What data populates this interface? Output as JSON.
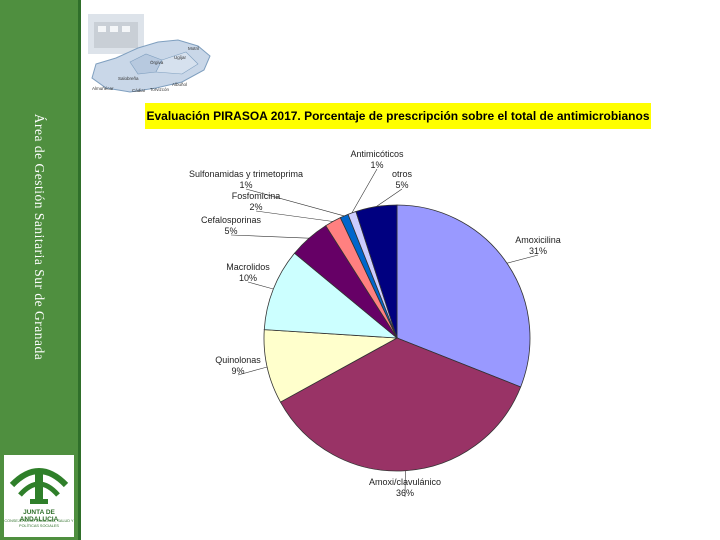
{
  "sidebar": {
    "vertical_title": "Área de Gestión Sanitaria Sur de Granada",
    "logo": {
      "line1": "JUNTA DE ANDALUCIA",
      "line2": "CONSEJERÍA DE IGUALDAD, SALUD Y POLÍTICAS SOCIALES"
    }
  },
  "map": {
    "labels": [
      "Motril",
      "Órgiva",
      "Salobreña",
      "Almuñécar",
      "Albuñol",
      "Ugíjar",
      "Cádiar",
      "Torvizcón"
    ]
  },
  "colors": {
    "sidebar_green": "#4f8f3f",
    "title_highlight": "#ffff00"
  },
  "chart_data": {
    "type": "pie",
    "title": "Evaluación PIRASOA 2017. Porcentaje de prescripción sobre el total de antimicrobianos",
    "slices": [
      {
        "label": "Amoxicilina",
        "value": 31,
        "value_label": "31%",
        "color": "#9999ff"
      },
      {
        "label": "Amoxi/clavulánico",
        "value": 36,
        "value_label": "36%",
        "color": "#993366"
      },
      {
        "label": "Quinolonas",
        "value": 9,
        "value_label": "9%",
        "color": "#ffffcc"
      },
      {
        "label": "Macrolidos",
        "value": 10,
        "value_label": "10%",
        "color": "#ccffff"
      },
      {
        "label": "Cefalosporinas",
        "value": 5,
        "value_label": "5%",
        "color": "#660066"
      },
      {
        "label": "Fosfomicina",
        "value": 2,
        "value_label": "2%",
        "color": "#ff8080"
      },
      {
        "label": "Sulfonamidas y trimetoprima",
        "value": 1,
        "value_label": "1%",
        "color": "#0066cc"
      },
      {
        "label": "Antimicóticos",
        "value": 1,
        "value_label": "1%",
        "color": "#ccccff"
      },
      {
        "label": "otros",
        "value": 5,
        "value_label": "5%",
        "color": "#000080"
      }
    ]
  }
}
